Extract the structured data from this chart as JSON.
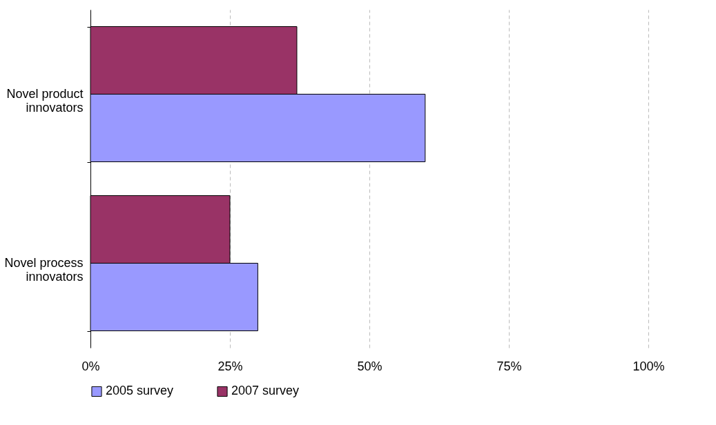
{
  "chart_data": {
    "type": "bar",
    "orientation": "horizontal",
    "categories": [
      "Novel product innovators",
      "Novel process innovators"
    ],
    "series": [
      {
        "name": "2005 survey",
        "color": "#9999ff",
        "values": [
          60,
          30
        ]
      },
      {
        "name": "2007 survey",
        "color": "#993366",
        "values": [
          37,
          25
        ]
      }
    ],
    "xlim": [
      0,
      100
    ],
    "xticks": [
      {
        "value": 0,
        "label": "0%"
      },
      {
        "value": 25,
        "label": "25%"
      },
      {
        "value": 50,
        "label": "50%"
      },
      {
        "value": 75,
        "label": "75%"
      },
      {
        "value": 100,
        "label": "100%"
      }
    ],
    "grid": "x",
    "legend": "bottom"
  }
}
